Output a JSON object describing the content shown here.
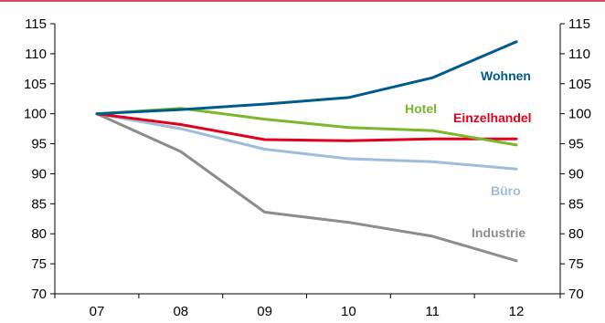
{
  "chart_data": {
    "type": "line",
    "title": "",
    "xlabel": "",
    "ylabel": "",
    "categories": [
      "07",
      "08",
      "09",
      "10",
      "11",
      "12"
    ],
    "ylim": [
      70,
      115
    ],
    "yticks": [
      70,
      75,
      80,
      85,
      90,
      95,
      100,
      105,
      110,
      115
    ],
    "y_axis_right_mirrored": true,
    "grid": false,
    "legend": "inline-labels",
    "series": [
      {
        "name": "Wohnen",
        "color": "#005a8c",
        "values": [
          100,
          100.7,
          101.6,
          102.7,
          106.0,
          112.0
        ]
      },
      {
        "name": "Hotel",
        "color": "#7ab829",
        "values": [
          100,
          100.9,
          99.1,
          97.7,
          97.2,
          94.8
        ]
      },
      {
        "name": "Einzelhandel",
        "color": "#e2001a",
        "values": [
          100,
          98.2,
          95.7,
          95.5,
          95.8,
          95.8
        ]
      },
      {
        "name": "Büro",
        "color": "#9dbddb",
        "values": [
          100,
          97.5,
          94.1,
          92.5,
          92.0,
          90.8
        ]
      },
      {
        "name": "Industrie",
        "color": "#8c8c8c",
        "values": [
          100,
          93.7,
          83.6,
          81.9,
          79.6,
          75.5
        ]
      }
    ]
  },
  "header_rule_color": "#c8102e"
}
